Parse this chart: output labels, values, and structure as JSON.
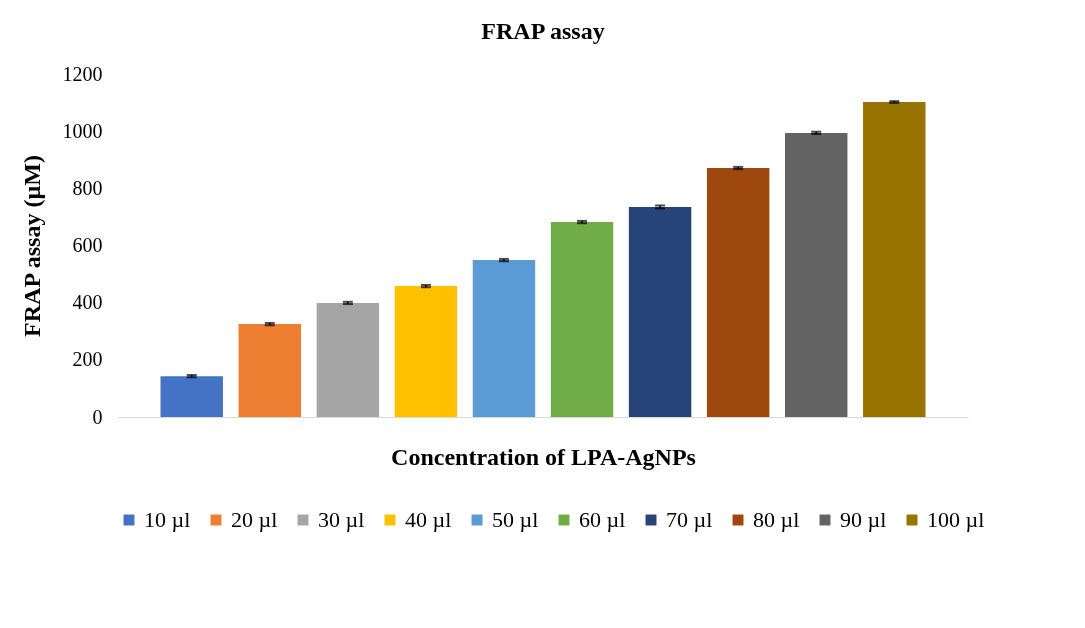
{
  "chart_data": {
    "type": "bar",
    "title": "FRAP assay",
    "xlabel": "Concentration of LPA-AgNPs",
    "ylabel": "FRAP assay (µM)",
    "categories": [
      null
    ],
    "ylim": [
      0,
      1200
    ],
    "yticks": [
      0,
      200,
      400,
      600,
      800,
      1000,
      1200
    ],
    "grid": false,
    "legend": "bottom",
    "series": [
      {
        "name": "10 µl",
        "color": "#4472c4",
        "values": [
          143
        ],
        "errors": [
          4
        ]
      },
      {
        "name": "20 µl",
        "color": "#ed7d31",
        "values": [
          325
        ],
        "errors": [
          4
        ]
      },
      {
        "name": "30 µl",
        "color": "#a5a5a5",
        "values": [
          399
        ],
        "errors": [
          4
        ]
      },
      {
        "name": "40 µl",
        "color": "#ffc000",
        "values": [
          458
        ],
        "errors": [
          4
        ]
      },
      {
        "name": "50 µl",
        "color": "#5b9bd5",
        "values": [
          549
        ],
        "errors": [
          4
        ]
      },
      {
        "name": "60 µl",
        "color": "#70ad47",
        "values": [
          682
        ],
        "errors": [
          4
        ]
      },
      {
        "name": "70 µl",
        "color": "#264478",
        "values": [
          735
        ],
        "errors": [
          5
        ]
      },
      {
        "name": "80 µl",
        "color": "#9e480e",
        "values": [
          871
        ],
        "errors": [
          4
        ]
      },
      {
        "name": "90 µl",
        "color": "#636363",
        "values": [
          994
        ],
        "errors": [
          4
        ]
      },
      {
        "name": "100 µl",
        "color": "#997300",
        "values": [
          1102
        ],
        "errors": [
          3
        ]
      }
    ]
  }
}
